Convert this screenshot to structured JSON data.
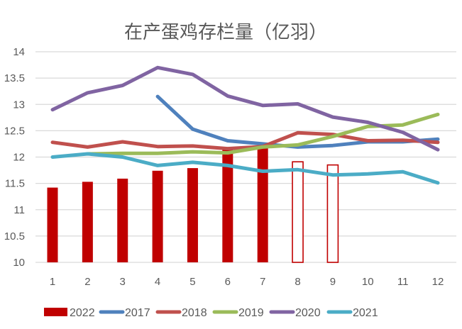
{
  "chart_data": {
    "type": "bar",
    "title": "在产蛋鸡存栏量（亿羽）",
    "xlabel": "",
    "ylabel": "",
    "ylim": [
      10,
      14
    ],
    "yticks": [
      "10",
      "10.5",
      "11",
      "11.5",
      "12",
      "12.5",
      "13",
      "13.5",
      "14"
    ],
    "grid": true,
    "legend": "bottom",
    "categories": [
      "1",
      "2",
      "3",
      "4",
      "5",
      "6",
      "7",
      "8",
      "9",
      "10",
      "11",
      "12"
    ],
    "bars": {
      "name": "2022",
      "color": "#C00000",
      "values": [
        11.42,
        11.53,
        11.59,
        11.74,
        11.79,
        12.19,
        12.19,
        11.91,
        11.85,
        null,
        null,
        null
      ],
      "hollow": [
        false,
        false,
        false,
        false,
        false,
        false,
        false,
        true,
        true,
        false,
        false,
        false
      ]
    },
    "series": [
      {
        "name": "2017",
        "color": "#4F81BD",
        "values": [
          null,
          null,
          null,
          13.15,
          12.53,
          12.31,
          12.25,
          12.19,
          12.22,
          12.29,
          12.29,
          12.34
        ]
      },
      {
        "name": "2018",
        "color": "#C0504D",
        "values": [
          12.28,
          12.19,
          12.29,
          12.2,
          12.21,
          12.16,
          12.2,
          12.46,
          12.43,
          12.31,
          12.32,
          12.28
        ]
      },
      {
        "name": "2019",
        "color": "#9BBB59",
        "values": [
          null,
          12.06,
          12.07,
          12.07,
          12.1,
          12.08,
          12.19,
          12.23,
          12.39,
          12.58,
          12.61,
          12.81
        ]
      },
      {
        "name": "2020",
        "color": "#8064A2",
        "values": [
          12.9,
          13.22,
          13.36,
          13.7,
          13.57,
          13.16,
          12.98,
          13.01,
          12.76,
          12.66,
          12.47,
          12.14
        ]
      },
      {
        "name": "2021",
        "color": "#4BACC6",
        "values": [
          12.0,
          12.06,
          12.0,
          11.84,
          11.9,
          11.84,
          11.73,
          11.76,
          11.66,
          11.68,
          11.72,
          11.51
        ]
      }
    ],
    "legend_entries": [
      "2022",
      "2017",
      "2018",
      "2019",
      "2020",
      "2021"
    ]
  }
}
